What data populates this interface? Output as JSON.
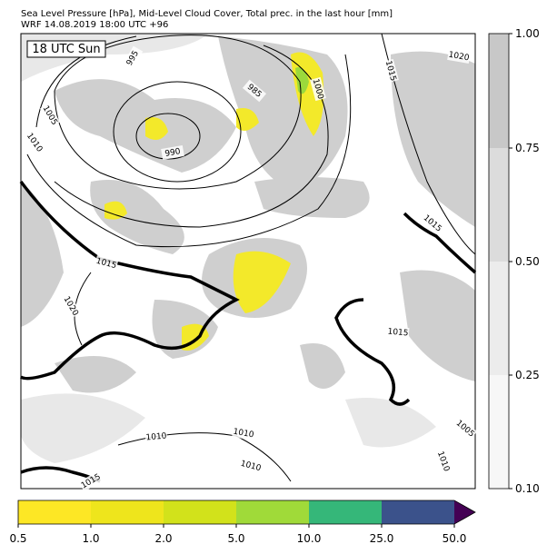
{
  "header": {
    "title_line1": "Sea Level Pressure [hPa], Mid-Level Cloud Cover, Total prec. in the last hour [mm]",
    "title_line2": "WRF 14.08.2019 18:00 UTC +96"
  },
  "map": {
    "time_label": "18 UTC Sun",
    "contour_labels": [
      "995",
      "1005",
      "1010",
      "990",
      "985",
      "1000",
      "1015",
      "1020",
      "1015",
      "1015",
      "1020",
      "1015",
      "1010",
      "1010",
      "1010",
      "1005",
      "1010",
      "1015"
    ]
  },
  "colorbar_right": {
    "ticks": [
      "0.10",
      "0.25",
      "0.50",
      "0.75",
      "1.00"
    ]
  },
  "colorbar_bottom": {
    "ticks": [
      "0.5",
      "1.0",
      "2.0",
      "5.0",
      "10.0",
      "25.0",
      "50.0"
    ]
  }
}
